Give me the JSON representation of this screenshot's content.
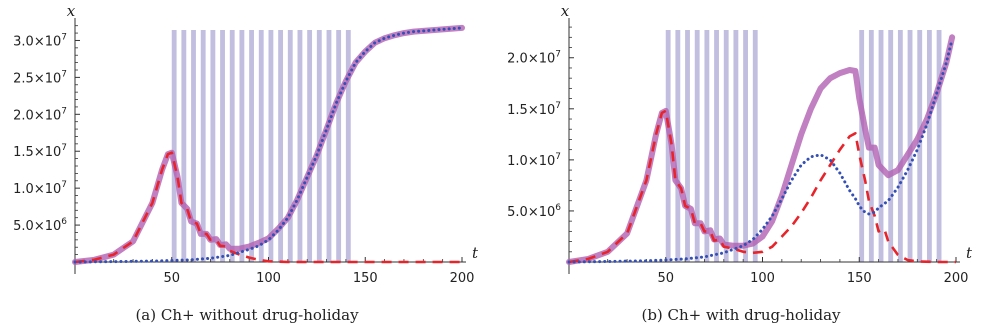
{
  "chart_data": [
    {
      "type": "line",
      "caption": "(a) Ch+ without drug-holiday",
      "xlabel": "t",
      "ylabel": "x",
      "xlim": [
        0,
        200
      ],
      "ylim": [
        0,
        32500000
      ],
      "x_ticks": [
        50,
        100,
        150,
        200
      ],
      "y_ticks": [
        {
          "value": 5000000,
          "label": "5.0×10^6"
        },
        {
          "value": 10000000,
          "label": "1.0×10^7"
        },
        {
          "value": 15000000,
          "label": "1.5×10^7"
        },
        {
          "value": 20000000,
          "label": "2.0×10^7"
        },
        {
          "value": 25000000,
          "label": "2.5×10^7"
        },
        {
          "value": 30000000,
          "label": "3.0×10^7"
        }
      ],
      "treatment_bands": [
        [
          50,
          52.5
        ],
        [
          55,
          57.5
        ],
        [
          60,
          62.5
        ],
        [
          65,
          67.5
        ],
        [
          70,
          72.5
        ],
        [
          75,
          77.5
        ],
        [
          80,
          82.5
        ],
        [
          85,
          87.5
        ],
        [
          90,
          92.5
        ],
        [
          95,
          97.5
        ],
        [
          100,
          102.5
        ],
        [
          105,
          107.5
        ],
        [
          110,
          112.5
        ],
        [
          115,
          117.5
        ],
        [
          120,
          122.5
        ],
        [
          125,
          127.5
        ],
        [
          130,
          132.5
        ],
        [
          135,
          137.5
        ],
        [
          140,
          142.5
        ]
      ],
      "band_color": "#b6b3da",
      "series": [
        {
          "style": "solid",
          "color": "#b160b2",
          "x": [
            0,
            10,
            20,
            30,
            40,
            45,
            48,
            50,
            53,
            55,
            58,
            60,
            63,
            65,
            68,
            70,
            73,
            75,
            78,
            80,
            85,
            90,
            95,
            100,
            105,
            110,
            115,
            120,
            125,
            130,
            135,
            140,
            145,
            150,
            155,
            160,
            165,
            170,
            175,
            180,
            185,
            190,
            195,
            200
          ],
          "y": [
            0,
            300000,
            1000000,
            2800000,
            8000000,
            12500000,
            14600000,
            14800000,
            11500000,
            8000000,
            7200000,
            5500000,
            5200000,
            3800000,
            3800000,
            3000000,
            3100000,
            2300000,
            2400000,
            1800000,
            1800000,
            2100000,
            2600000,
            3200000,
            4500000,
            6000000,
            8500000,
            11500000,
            14500000,
            18000000,
            21500000,
            24500000,
            27000000,
            28500000,
            29700000,
            30300000,
            30700000,
            31000000,
            31200000,
            31300000,
            31400000,
            31500000,
            31600000,
            31700000
          ]
        },
        {
          "style": "dashed",
          "color": "#e8242b",
          "x": [
            0,
            10,
            20,
            30,
            40,
            45,
            48,
            50,
            53,
            55,
            58,
            60,
            63,
            65,
            68,
            70,
            73,
            75,
            78,
            80,
            85,
            90,
            95,
            100,
            110,
            120,
            140,
            160,
            180,
            200
          ],
          "y": [
            0,
            300000,
            1000000,
            2800000,
            8000000,
            12500000,
            14600000,
            14800000,
            11500000,
            8000000,
            7200000,
            5500000,
            5200000,
            3800000,
            3800000,
            3000000,
            3000000,
            2200000,
            2100000,
            1500000,
            1000000,
            600000,
            300000,
            100000,
            0,
            0,
            0,
            0,
            0,
            0
          ]
        },
        {
          "style": "dotted",
          "color": "#3550b5",
          "x": [
            0,
            20,
            40,
            50,
            60,
            70,
            80,
            85,
            90,
            95,
            100,
            105,
            110,
            115,
            120,
            125,
            130,
            135,
            140,
            145,
            150,
            155,
            160,
            165,
            170,
            175,
            180,
            185,
            190,
            195,
            200
          ],
          "y": [
            0,
            50000,
            120000,
            200000,
            300000,
            500000,
            900000,
            1300000,
            1700000,
            2200000,
            3000000,
            4300000,
            6000000,
            8500000,
            11500000,
            14500000,
            18000000,
            21500000,
            24500000,
            27000000,
            28500000,
            29700000,
            30300000,
            30700000,
            31000000,
            31200000,
            31300000,
            31400000,
            31500000,
            31600000,
            31700000
          ]
        }
      ]
    },
    {
      "type": "line",
      "caption": "(b) Ch+ with drug-holiday",
      "xlabel": "t",
      "ylabel": "x",
      "xlim": [
        0,
        200
      ],
      "ylim": [
        0,
        23500000
      ],
      "x_ticks": [
        50,
        100,
        150,
        200
      ],
      "y_ticks": [
        {
          "value": 5000000,
          "label": "5.0×10^6"
        },
        {
          "value": 10000000,
          "label": "1.0×10^7"
        },
        {
          "value": 15000000,
          "label": "1.5×10^7"
        },
        {
          "value": 20000000,
          "label": "2.0×10^7"
        }
      ],
      "treatment_bands": [
        [
          50,
          52.5
        ],
        [
          55,
          57.5
        ],
        [
          60,
          62.5
        ],
        [
          65,
          67.5
        ],
        [
          70,
          72.5
        ],
        [
          75,
          77.5
        ],
        [
          80,
          82.5
        ],
        [
          85,
          87.5
        ],
        [
          90,
          92.5
        ],
        [
          95,
          97.5
        ],
        [
          150,
          152.5
        ],
        [
          155,
          157.5
        ],
        [
          160,
          162.5
        ],
        [
          165,
          167.5
        ],
        [
          170,
          172.5
        ],
        [
          175,
          177.5
        ],
        [
          180,
          182.5
        ],
        [
          185,
          187.5
        ],
        [
          190,
          192.5
        ]
      ],
      "band_color": "#b6b3da",
      "series": [
        {
          "style": "solid",
          "color": "#b160b2",
          "x": [
            0,
            10,
            20,
            30,
            40,
            45,
            48,
            50,
            53,
            55,
            58,
            60,
            63,
            65,
            68,
            70,
            73,
            75,
            78,
            80,
            85,
            90,
            95,
            100,
            105,
            110,
            115,
            120,
            125,
            130,
            135,
            140,
            145,
            148,
            150,
            153,
            155,
            158,
            160,
            165,
            170,
            175,
            180,
            185,
            190,
            195,
            198
          ],
          "y": [
            0,
            300000,
            1000000,
            2800000,
            8000000,
            12500000,
            14600000,
            14800000,
            11500000,
            8000000,
            7200000,
            5500000,
            5200000,
            3800000,
            3800000,
            3000000,
            3100000,
            2200000,
            2300000,
            1700000,
            1600000,
            1600000,
            1800000,
            2500000,
            4000000,
            6500000,
            9500000,
            12500000,
            15000000,
            17000000,
            18000000,
            18500000,
            18800000,
            18700000,
            16000000,
            13000000,
            11200000,
            11200000,
            9500000,
            8500000,
            9000000,
            10500000,
            12000000,
            14000000,
            16500000,
            19500000,
            22000000
          ]
        },
        {
          "style": "dashed",
          "color": "#e8242b",
          "x": [
            0,
            10,
            20,
            30,
            40,
            45,
            48,
            50,
            53,
            55,
            58,
            60,
            63,
            65,
            68,
            70,
            73,
            75,
            78,
            80,
            85,
            90,
            95,
            100,
            105,
            110,
            115,
            120,
            125,
            130,
            135,
            140,
            145,
            148,
            150,
            153,
            155,
            158,
            160,
            163,
            165,
            170,
            175,
            180,
            190,
            200
          ],
          "y": [
            0,
            300000,
            1000000,
            2800000,
            8000000,
            12500000,
            14600000,
            14800000,
            11500000,
            8000000,
            7200000,
            5500000,
            5200000,
            3800000,
            3800000,
            3000000,
            3000000,
            2100000,
            2200000,
            1500000,
            1300000,
            1000000,
            900000,
            1000000,
            1500000,
            2500000,
            3500000,
            4800000,
            6300000,
            8000000,
            9500000,
            11000000,
            12300000,
            12600000,
            10500000,
            8000000,
            6000000,
            4500000,
            3000000,
            3200000,
            2000000,
            700000,
            200000,
            50000,
            0,
            0
          ]
        },
        {
          "style": "dotted",
          "color": "#3550b5",
          "x": [
            0,
            20,
            40,
            50,
            60,
            70,
            80,
            90,
            95,
            100,
            105,
            110,
            115,
            120,
            125,
            130,
            135,
            140,
            145,
            148,
            150,
            152,
            155,
            158,
            160,
            165,
            170,
            175,
            180,
            185,
            190,
            195,
            198
          ],
          "y": [
            0,
            50000,
            120000,
            200000,
            300000,
            500000,
            900000,
            1600000,
            2200000,
            3200000,
            4500000,
            6200000,
            8000000,
            9500000,
            10300000,
            10500000,
            10000000,
            8700000,
            7000000,
            6200000,
            5500000,
            5000000,
            4700000,
            4900000,
            5300000,
            6000000,
            7300000,
            9000000,
            11000000,
            13500000,
            16500000,
            19500000,
            21800000
          ]
        }
      ]
    }
  ]
}
